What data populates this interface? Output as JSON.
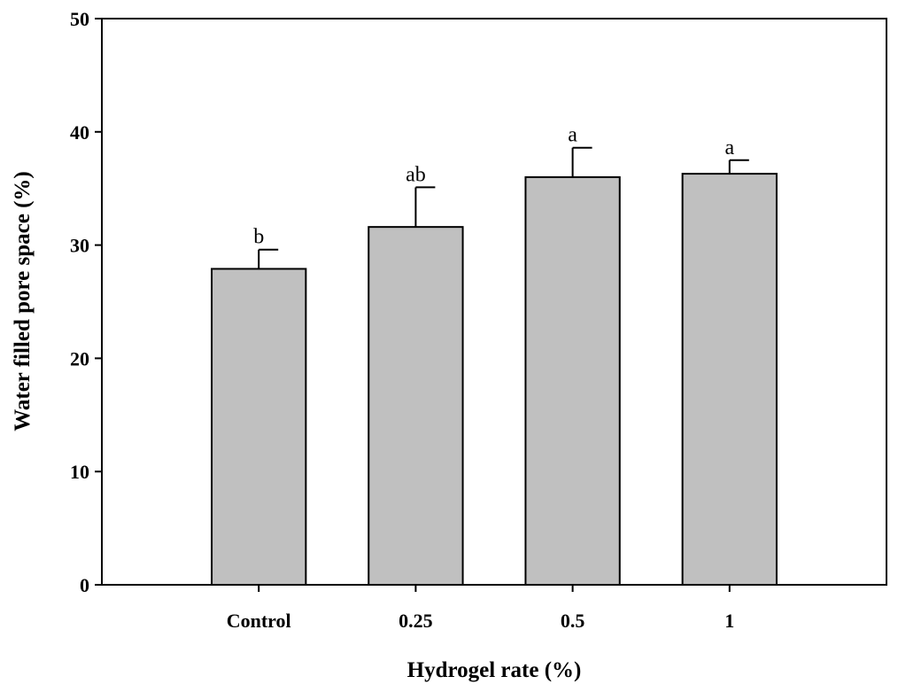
{
  "chart_data": {
    "type": "bar",
    "xlabel": "Hydrogel rate (%)",
    "ylabel": "Water filled pore space (%)",
    "ylim": [
      0,
      50
    ],
    "yticks": [
      0,
      10,
      20,
      30,
      40,
      50
    ],
    "grid": false,
    "categories": [
      "Control",
      "0.25",
      "0.5",
      "1"
    ],
    "values": [
      27.9,
      31.6,
      36.0,
      36.3
    ],
    "errors": [
      1.7,
      3.5,
      2.6,
      1.2
    ],
    "significance": [
      "b",
      "ab",
      "a",
      "a"
    ],
    "bar_color": "#c0c0c0",
    "edge_color": "#000000"
  }
}
